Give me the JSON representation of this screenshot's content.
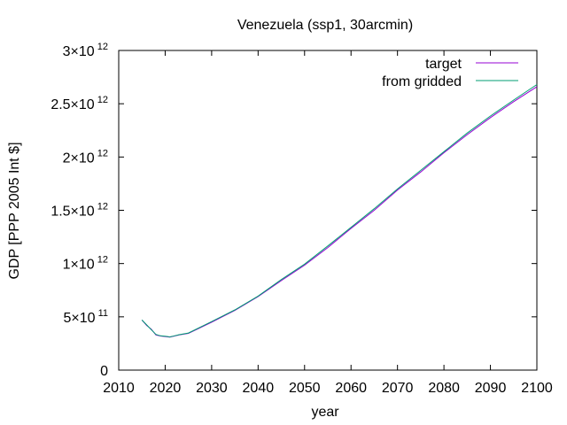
{
  "chart_data": {
    "type": "line",
    "title": "Venezuela (ssp1, 30arcmin)",
    "xlabel": "year",
    "ylabel": "GDP [PPP 2005 Int $]",
    "xlim": [
      2010,
      2100
    ],
    "ylim": [
      0,
      3000000000000
    ],
    "xticks": [
      {
        "value": 2010,
        "label": "2010"
      },
      {
        "value": 2020,
        "label": "2020"
      },
      {
        "value": 2030,
        "label": "2030"
      },
      {
        "value": 2040,
        "label": "2040"
      },
      {
        "value": 2050,
        "label": "2050"
      },
      {
        "value": 2060,
        "label": "2060"
      },
      {
        "value": 2070,
        "label": "2070"
      },
      {
        "value": 2080,
        "label": "2080"
      },
      {
        "value": 2090,
        "label": "2090"
      },
      {
        "value": 2100,
        "label": "2100"
      }
    ],
    "yticks": [
      {
        "value": 0,
        "mant": "0",
        "exp": ""
      },
      {
        "value": 500000000000,
        "mant": "5×10",
        "exp": "11"
      },
      {
        "value": 1000000000000,
        "mant": "1×10",
        "exp": "12"
      },
      {
        "value": 1500000000000,
        "mant": "1.5×10",
        "exp": "12"
      },
      {
        "value": 2000000000000,
        "mant": "2×10",
        "exp": "12"
      },
      {
        "value": 2500000000000,
        "mant": "2.5×10",
        "exp": "12"
      },
      {
        "value": 3000000000000,
        "mant": "3×10",
        "exp": "12"
      }
    ],
    "grid": false,
    "legend_position": "top-right",
    "series": [
      {
        "name": "target",
        "color": "#9400d3",
        "x": [
          2015,
          2016,
          2017,
          2018,
          2019,
          2020,
          2021,
          2022,
          2023,
          2025,
          2030,
          2035,
          2040,
          2045,
          2050,
          2055,
          2060,
          2065,
          2070,
          2075,
          2080,
          2085,
          2090,
          2095,
          2100
        ],
        "y": [
          470000000000,
          420000000000,
          385000000000,
          330000000000,
          320000000000,
          315000000000,
          310000000000,
          320000000000,
          330000000000,
          345000000000,
          450000000000,
          560000000000,
          690000000000,
          840000000000,
          985000000000,
          1150000000000,
          1330000000000,
          1500000000000,
          1690000000000,
          1860000000000,
          2040000000000,
          2210000000000,
          2370000000000,
          2520000000000,
          2660000000000
        ]
      },
      {
        "name": "from gridded",
        "color": "#009e73",
        "x": [
          2015,
          2016,
          2017,
          2018,
          2019,
          2020,
          2021,
          2022,
          2023,
          2025,
          2030,
          2035,
          2040,
          2045,
          2050,
          2055,
          2060,
          2065,
          2070,
          2075,
          2080,
          2085,
          2090,
          2095,
          2100
        ],
        "y": [
          470000000000,
          425000000000,
          380000000000,
          335000000000,
          322000000000,
          318000000000,
          312000000000,
          322000000000,
          332000000000,
          348000000000,
          455000000000,
          565000000000,
          695000000000,
          850000000000,
          995000000000,
          1165000000000,
          1340000000000,
          1515000000000,
          1700000000000,
          1875000000000,
          2050000000000,
          2225000000000,
          2385000000000,
          2535000000000,
          2680000000000
        ]
      }
    ]
  }
}
